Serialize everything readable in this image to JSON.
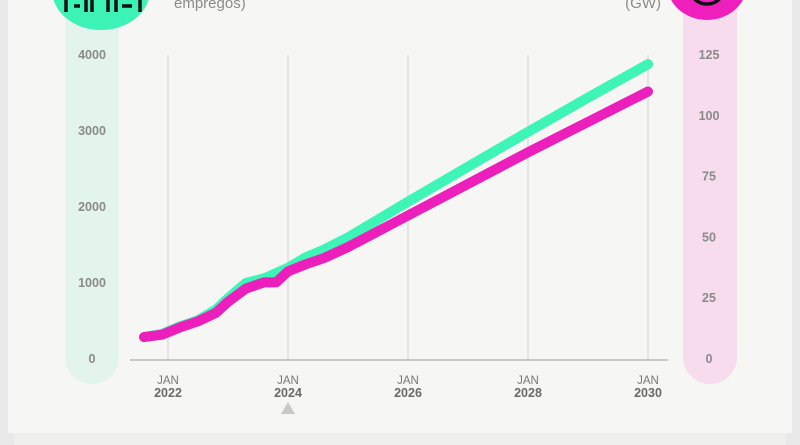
{
  "header": {
    "left_title": "empregos)",
    "right_title": "(GW)"
  },
  "icons": {
    "left": "building-icon",
    "right": "circle-icon"
  },
  "colors": {
    "jobs": "#3cf5b6",
    "capacity": "#ec1fbc",
    "left_axis_bg": "#e3f4ec",
    "right_axis_bg": "#f6dcec"
  },
  "chart_data": {
    "type": "line",
    "x_tick_labels": [
      {
        "month": "JAN",
        "year": "2022"
      },
      {
        "month": "JAN",
        "year": "2024"
      },
      {
        "month": "JAN",
        "year": "2026"
      },
      {
        "month": "JAN",
        "year": "2028"
      },
      {
        "month": "JAN",
        "year": "2030"
      }
    ],
    "x_ticks": [
      2022,
      2024,
      2026,
      2028,
      2030
    ],
    "xlim": [
      2021.6,
      2030
    ],
    "current_marker_year": 2024,
    "y_left": {
      "label": "empregos)",
      "ylim": [
        0,
        4000
      ],
      "ticks": [
        "0",
        "1000",
        "2000",
        "3000",
        "4000"
      ]
    },
    "y_right": {
      "label": "(GW)",
      "ylim": [
        0,
        125
      ],
      "ticks": [
        "0",
        "25",
        "50",
        "75",
        "100",
        "125"
      ]
    },
    "grid": "vertical",
    "series": [
      {
        "axis": "left",
        "x": [
          2021.6,
          2021.9,
          2022.2,
          2022.5,
          2022.8,
          2023.0,
          2023.3,
          2023.6,
          2023.8,
          2024.0,
          2024.3,
          2024.6,
          2025.0,
          2026.0,
          2027.0,
          2028.0,
          2029.0,
          2030.0
        ],
        "y": [
          290,
          330,
          430,
          510,
          650,
          800,
          1000,
          1060,
          1130,
          1200,
          1340,
          1440,
          1600,
          2070,
          2530,
          2990,
          3440,
          3880
        ]
      },
      {
        "axis": "right",
        "x": [
          2021.6,
          2021.9,
          2022.2,
          2022.5,
          2022.8,
          2023.0,
          2023.3,
          2023.6,
          2023.8,
          2024.0,
          2024.3,
          2024.6,
          2025.0,
          2026.0,
          2027.0,
          2028.0,
          2029.0,
          2030.0
        ],
        "y": [
          9,
          10,
          13,
          15.5,
          19,
          23.5,
          29,
          31.5,
          31.5,
          36,
          39,
          41.5,
          46,
          59,
          72,
          85,
          97.5,
          110
        ]
      }
    ]
  }
}
